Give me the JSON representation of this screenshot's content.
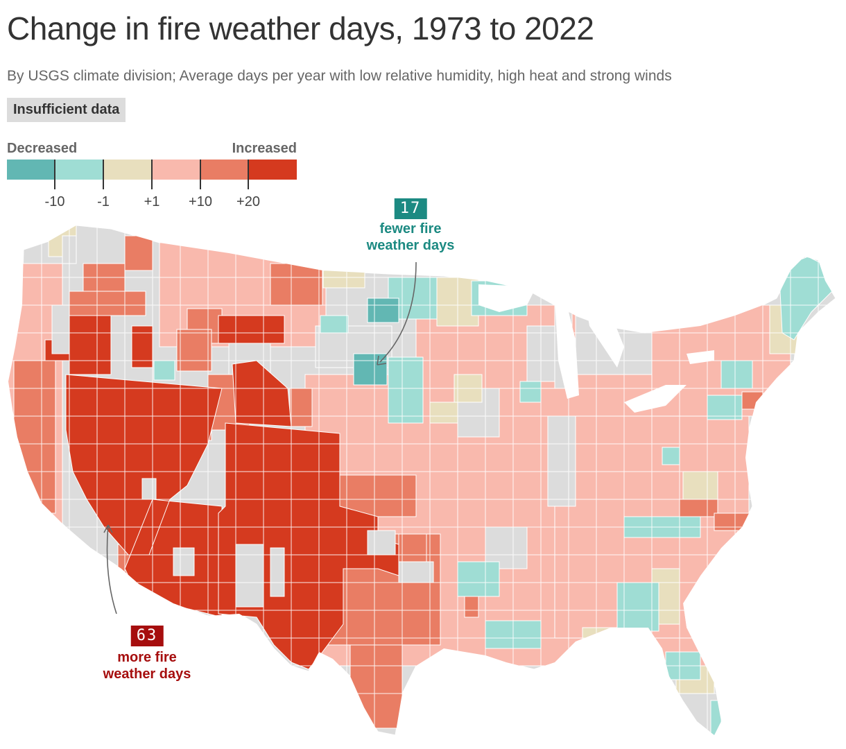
{
  "header": {
    "title": "Change in fire weather days, 1973 to 2022",
    "subtitle": "By USGS climate division; Average days per year with low relative humidity, high heat and strong winds",
    "no_data_label": "Insufficient data"
  },
  "legend": {
    "left_label": "Decreased",
    "right_label": "Increased",
    "colors": [
      "#62b7b3",
      "#9fddd4",
      "#e8dfbe",
      "#f9b9ad",
      "#e97d64",
      "#d53a1f"
    ],
    "ticks": [
      "-10",
      "-1",
      "+1",
      "+10",
      "+20"
    ]
  },
  "colors": {
    "no_data": "#dcdcdc",
    "decrease_label": "#1c8a82",
    "increase_label": "#a60e0e",
    "decrease_box": "#1c8a82",
    "increase_box": "#a60e0e"
  },
  "callouts": {
    "decrease": {
      "value": "17",
      "line1": "fewer fire",
      "line2": "weather days"
    },
    "increase": {
      "value": "63",
      "line1": "more fire",
      "line2": "weather days"
    }
  }
}
